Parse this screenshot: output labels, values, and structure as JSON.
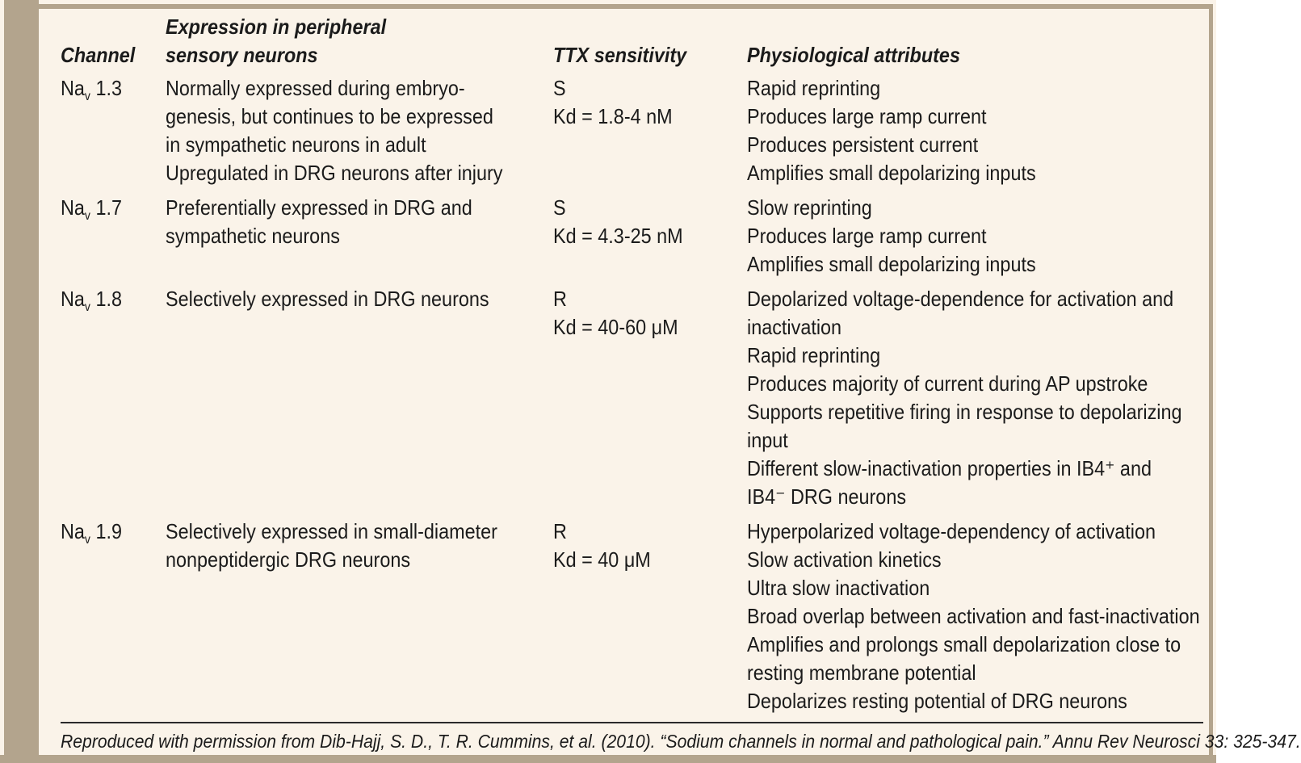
{
  "colors": {
    "background": "#faf3e9",
    "accent_tan": "#b3a48d",
    "ink": "#1b1b1b"
  },
  "table": {
    "headers": {
      "channel": "Channel",
      "expression_line1": "Expression in peripheral",
      "expression_line2": "sensory neurons",
      "ttx": "TTX sensitivity",
      "attributes": "Physiological attributes"
    },
    "rows": [
      {
        "channel": {
          "prefix": "Na",
          "subscript": "v",
          "number": "1.3"
        },
        "expression_lines": [
          "Normally expressed during embryo-",
          "genesis, but continues to be expressed",
          "in sympathetic neurons in adult",
          "Upregulated in DRG neurons after injury"
        ],
        "ttx_lines": [
          "S",
          "Kd = 1.8-4 nM"
        ],
        "attribute_lines": [
          "Rapid reprinting",
          "Produces large ramp current",
          "Produces persistent current",
          "Amplifies small depolarizing inputs"
        ]
      },
      {
        "channel": {
          "prefix": "Na",
          "subscript": "v",
          "number": "1.7"
        },
        "expression_lines": [
          "Preferentially expressed in DRG and",
          "sympathetic neurons"
        ],
        "ttx_lines": [
          "S",
          "Kd = 4.3-25 nM"
        ],
        "attribute_lines": [
          "Slow reprinting",
          "Produces large ramp current",
          "Amplifies small depolarizing inputs"
        ]
      },
      {
        "channel": {
          "prefix": "Na",
          "subscript": "v",
          "number": "1.8"
        },
        "expression_lines": [
          "Selectively expressed in DRG neurons"
        ],
        "ttx_lines": [
          "R",
          "Kd = 40-60 μM"
        ],
        "attribute_lines": [
          "Depolarized voltage-dependence for activation and",
          "inactivation",
          "Rapid reprinting",
          "Produces majority of current during AP upstroke",
          "Supports repetitive firing in response to depolarizing",
          "input",
          "Different slow-inactivation properties in IB4⁺ and",
          "IB4⁻ DRG neurons"
        ]
      },
      {
        "channel": {
          "prefix": "Na",
          "subscript": "v",
          "number": "1.9"
        },
        "expression_lines": [
          "Selectively expressed in small-diameter",
          "nonpeptidergic DRG neurons"
        ],
        "ttx_lines": [
          "R",
          "Kd = 40 μM"
        ],
        "attribute_lines": [
          "Hyperpolarized voltage-dependency of activation",
          "Slow activation kinetics",
          "Ultra slow inactivation",
          "Broad overlap between activation and fast-inactivation",
          "Amplifies and prolongs small depolarization close to",
          "resting membrane potential",
          "Depolarizes resting potential of DRG neurons"
        ]
      }
    ]
  },
  "footer": {
    "citation": "Reproduced with permission from Dib-Hajj, S. D., T. R. Cummins, et al. (2010). “Sodium channels in normal and pathological pain.” Annu Rev Neurosci 33: 325-347."
  }
}
